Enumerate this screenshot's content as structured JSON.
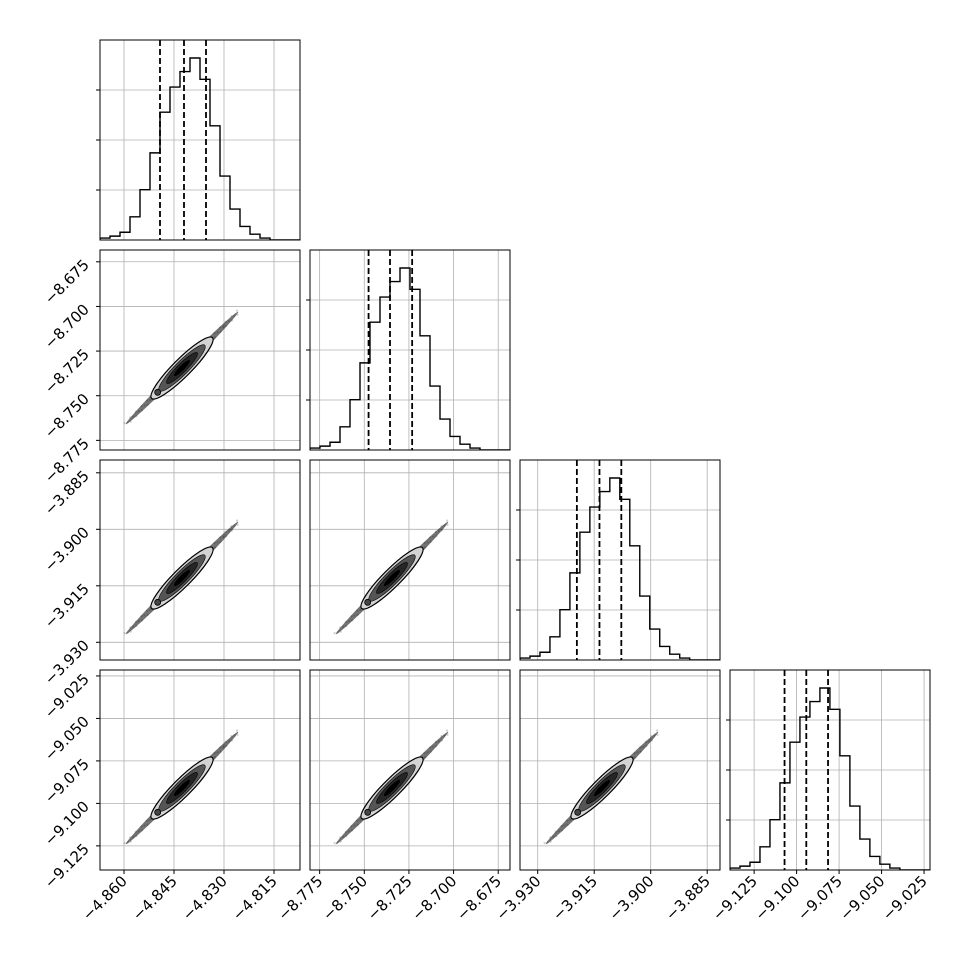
{
  "chart_data": {
    "type": "corner",
    "colors": {
      "line": "#000000",
      "grid": "#b0b0b0",
      "panel_border": "#000000",
      "contour_fill": "#d3d3d3"
    },
    "grid": true,
    "quantiles_shown": [
      0.16,
      0.5,
      0.84
    ],
    "parameters": [
      {
        "index": 0,
        "range": [
          -4.8672,
          -4.8072
        ],
        "ticks": [
          -4.86,
          -4.845,
          -4.83,
          -4.815
        ],
        "tick_labels": [
          "−4.860",
          "−4.845",
          "−4.830",
          "−4.815"
        ],
        "quantiles": [
          -4.8492,
          -4.842,
          -4.8354
        ],
        "hist": {
          "edges": [
            -4.8672,
            -4.8642,
            -4.8612,
            -4.8582,
            -4.8552,
            -4.8522,
            -4.8492,
            -4.8462,
            -4.8432,
            -4.8402,
            -4.8372,
            -4.8342,
            -4.8312,
            -4.8282,
            -4.8252,
            -4.8222,
            -4.8192,
            -4.8162,
            -4.8132,
            -4.8102,
            -4.8072
          ],
          "counts": [
            1,
            2,
            4,
            12,
            26,
            45,
            66,
            79,
            87,
            94,
            83,
            59,
            33,
            16,
            7,
            3,
            1,
            0,
            0,
            0
          ]
        }
      },
      {
        "index": 1,
        "range": [
          -8.7804,
          -8.6684
        ],
        "ticks": [
          -8.675,
          -8.7,
          -8.725,
          -8.75,
          -8.775
        ],
        "tick_labels": [
          "−8.675",
          "−8.700",
          "−8.725",
          "−8.750",
          "−8.775"
        ],
        "quantiles": [
          -8.7476,
          -8.7356,
          -8.7232
        ],
        "hist": {
          "edges": [
            -8.7804,
            -8.7748,
            -8.7692,
            -8.7636,
            -8.758,
            -8.7524,
            -8.7468,
            -8.7412,
            -8.7356,
            -8.73,
            -8.7244,
            -8.7188,
            -8.7132,
            -8.7076,
            -8.702,
            -8.6964,
            -8.6908,
            -8.6852,
            -8.6796,
            -8.674,
            -8.6684
          ],
          "counts": [
            1,
            2,
            4,
            12,
            26,
            45,
            66,
            79,
            87,
            94,
            83,
            59,
            33,
            16,
            7,
            3,
            1,
            0,
            0,
            0
          ]
        }
      },
      {
        "index": 2,
        "range": [
          -3.9347,
          -3.8816
        ],
        "ticks": [
          -3.885,
          -3.9,
          -3.915,
          -3.93
        ],
        "tick_labels": [
          "−3.885",
          "−3.900",
          "−3.915",
          "−3.930"
        ],
        "quantiles": [
          -3.9196,
          -3.9136,
          -3.9078
        ],
        "hist": {
          "edges": [
            -3.9347,
            -3.93205,
            -3.9294,
            -3.92675,
            -3.9241,
            -3.92145,
            -3.9188,
            -3.91615,
            -3.9135,
            -3.91085,
            -3.9082,
            -3.90555,
            -3.9029,
            -3.90025,
            -3.8976,
            -3.89495,
            -3.8923,
            -3.88965,
            -3.887,
            -3.88435,
            -3.8817
          ],
          "counts": [
            1,
            2,
            4,
            12,
            26,
            45,
            66,
            79,
            87,
            94,
            83,
            59,
            33,
            16,
            7,
            3,
            1,
            0,
            0,
            0
          ]
        }
      },
      {
        "index": 3,
        "range": [
          -9.1392,
          -9.0215
        ],
        "ticks": [
          -9.125,
          -9.1,
          -9.075,
          -9.05,
          -9.025
        ],
        "tick_labels": [
          "−9.125",
          "−9.100",
          "−9.075",
          "−9.050",
          "−9.025"
        ],
        "quantiles": [
          -9.1071,
          -9.0943,
          -9.0815
        ],
        "hist": {
          "edges": [
            -9.1392,
            -9.13332,
            -9.12744,
            -9.12156,
            -9.11568,
            -9.1098,
            -9.10392,
            -9.09804,
            -9.09216,
            -9.08628,
            -9.0804,
            -9.07452,
            -9.06864,
            -9.06276,
            -9.05688,
            -9.051,
            -9.04512,
            -9.03924,
            -9.03336,
            -9.02748,
            -9.0216
          ],
          "counts": [
            1,
            2,
            4,
            12,
            26,
            45,
            66,
            79,
            87,
            94,
            83,
            59,
            33,
            16,
            7,
            3,
            1,
            0,
            0,
            0
          ]
        }
      }
    ],
    "joint": {
      "mean_fraction": 0.41,
      "spread_fraction": 0.076,
      "minor_spread_fraction": 0.014,
      "extent_sigma": 3.7,
      "contour_sigmas": [
        0.5,
        1.0,
        1.5,
        2.0
      ],
      "contour_grays": [
        "#000000",
        "#262626",
        "#555555",
        "#9a9a9a"
      ]
    }
  }
}
